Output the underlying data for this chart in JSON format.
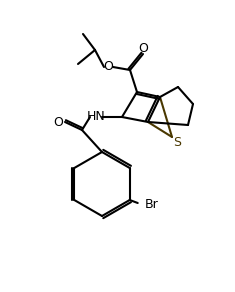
{
  "bg_color": "#ffffff",
  "line_color": "#000000",
  "line_width": 1.5,
  "bond_color": "#4a3800",
  "s_color": "#4a3800",
  "atoms": {
    "S": "S",
    "O_ester1": "O",
    "O_ester2": "O",
    "N": "HN",
    "O_amide": "O",
    "Br": "Br"
  }
}
